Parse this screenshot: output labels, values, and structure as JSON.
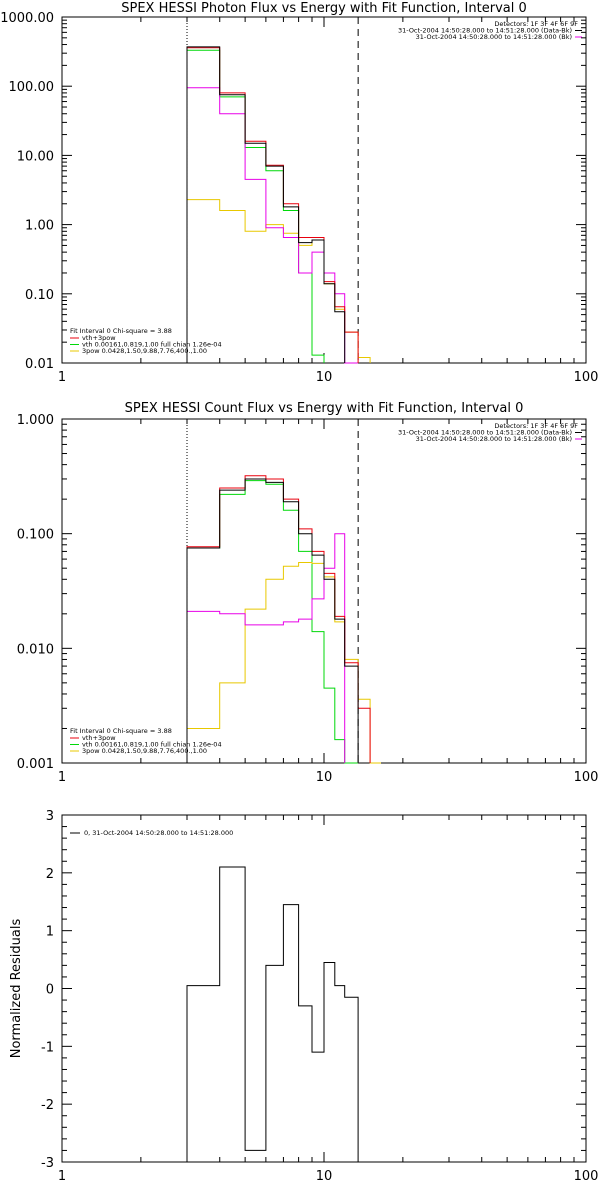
{
  "chart_data": [
    {
      "type": "line",
      "title": "SPEX HESSI Photon Flux vs Energy with Fit Function, Interval 0",
      "ylabel": "",
      "xscale": "log",
      "yscale": "log",
      "xlim": [
        1,
        100
      ],
      "ylim": [
        0.01,
        1000
      ],
      "xticks": [
        "1",
        "10",
        "100"
      ],
      "yticks": [
        "0.01",
        "0.10",
        "1.00",
        "10.00",
        "100.00",
        "1000.00"
      ],
      "vlines": {
        "dotted": 3,
        "dashed": 13.5
      },
      "header_lines": [
        "Detectors: 1F 3F 4F 6F 9F",
        "31-Oct-2004 14:50:28.000 to 14:51:28.000 (Data-Bk)",
        "31-Oct-2004 14:50:28.000 to 14:51:28.000 (Bk)"
      ],
      "fit_info": "Fit Interval 0   Chi-square = 3.88",
      "edges": [
        3.0,
        4.0,
        5.0,
        6.0,
        7.0,
        8.0,
        9.0,
        10.0,
        11.0,
        12.0,
        13.5,
        15.0,
        16.5
      ],
      "series": [
        {
          "name": "",
          "color": "#000000",
          "values": [
            370,
            75,
            15,
            7.0,
            1.8,
            0.55,
            0.6,
            0.14,
            0.055,
            null,
            null,
            null
          ]
        },
        {
          "name": "vth+3pow",
          "color": "#e8000e",
          "values": [
            360,
            80,
            16,
            7.2,
            2.0,
            0.65,
            0.65,
            0.15,
            0.065,
            0.028,
            null,
            null
          ]
        },
        {
          "name": "vth 0.00161,0.819,1.00  full chian 1.26e-04",
          "color": "#00d80a",
          "values": [
            330,
            70,
            13,
            6.0,
            1.6,
            0.2,
            0.013,
            null,
            null,
            null,
            null,
            null
          ]
        },
        {
          "name": "3pow 0.0428,1.50,9.88,7.76,400.,1.00",
          "color": "#e8c800",
          "values": [
            2.3,
            1.6,
            0.8,
            1.0,
            0.75,
            0.5,
            0.6,
            0.14,
            0.06,
            0.028,
            0.012,
            null
          ]
        },
        {
          "name": "",
          "color": "#e800e8",
          "values": [
            95,
            40,
            4.5,
            0.9,
            0.65,
            0.2,
            0.4,
            0.2,
            0.1,
            0.01,
            null,
            null
          ]
        }
      ],
      "legend_position": "lower-left"
    },
    {
      "type": "line",
      "title": "SPEX HESSI Count Flux vs Energy with Fit Function, Interval 0",
      "ylabel": "",
      "xscale": "log",
      "yscale": "log",
      "xlim": [
        1,
        100
      ],
      "ylim": [
        0.001,
        1
      ],
      "xticks": [
        "1",
        "10",
        "100"
      ],
      "yticks": [
        "0.001",
        "0.010",
        "0.100",
        "1.000"
      ],
      "vlines": {
        "dotted": 3,
        "dashed": 13.5
      },
      "header_lines": [
        "Detectors: 1F 3F 4F 6F 9F",
        "31-Oct-2004 14:50:28.000 to 14:51:28.000 (Data-Bk)",
        "31-Oct-2004 14:50:28.000 to 14:51:28.000 (Bk)"
      ],
      "fit_info": "Fit Interval 0   Chi-square = 3.88",
      "edges": [
        3.0,
        4.0,
        5.0,
        6.0,
        7.0,
        8.0,
        9.0,
        10.0,
        11.0,
        12.0,
        13.5,
        15.0,
        16.5
      ],
      "series": [
        {
          "name": "",
          "color": "#000000",
          "values": [
            0.075,
            0.24,
            0.3,
            0.28,
            0.19,
            0.1,
            0.065,
            0.04,
            0.018,
            0.007,
            null,
            null
          ]
        },
        {
          "name": "vth+3pow",
          "color": "#e8000e",
          "values": [
            0.077,
            0.25,
            0.32,
            0.3,
            0.2,
            0.11,
            0.07,
            0.045,
            0.019,
            0.0075,
            0.003,
            null
          ]
        },
        {
          "name": "vth 0.00161,0.819,1.00  full chian 1.26e-04",
          "color": "#00d80a",
          "values": [
            0.075,
            0.22,
            0.29,
            0.27,
            0.16,
            0.07,
            0.014,
            0.0045,
            0.0016,
            0.0004,
            null,
            null
          ]
        },
        {
          "name": "3pow 0.0428,1.50,9.88,7.76,400.,1.00",
          "color": "#e8c800",
          "values": [
            0.002,
            0.005,
            0.022,
            0.04,
            0.052,
            0.056,
            0.055,
            0.042,
            0.017,
            0.008,
            0.0036,
            0.001
          ]
        },
        {
          "name": "",
          "color": "#e800e8",
          "values": [
            0.021,
            0.02,
            0.016,
            0.016,
            0.017,
            0.018,
            0.027,
            0.05,
            0.1,
            null,
            null,
            null
          ]
        }
      ],
      "legend_position": "lower-left"
    },
    {
      "type": "line",
      "title": "",
      "ylabel": "Normalized Residuals",
      "xscale": "log",
      "yscale": "linear",
      "xlim": [
        1,
        100
      ],
      "ylim": [
        -3,
        3
      ],
      "xticks": [
        "1",
        "10",
        "100"
      ],
      "yticks": [
        "-3",
        "-2",
        "-1",
        "0",
        "1",
        "2",
        "3"
      ],
      "legend_label": "0, 31-Oct-2004 14:50:28.000 to 14:51:28.000",
      "edges": [
        3.0,
        4.0,
        5.0,
        6.0,
        7.0,
        8.0,
        9.0,
        10.0,
        11.0,
        12.0,
        13.5
      ],
      "values": [
        0.05,
        2.1,
        -2.8,
        0.4,
        1.45,
        -0.3,
        -1.1,
        0.45,
        0.05,
        -0.15
      ],
      "color": "#000000"
    }
  ]
}
